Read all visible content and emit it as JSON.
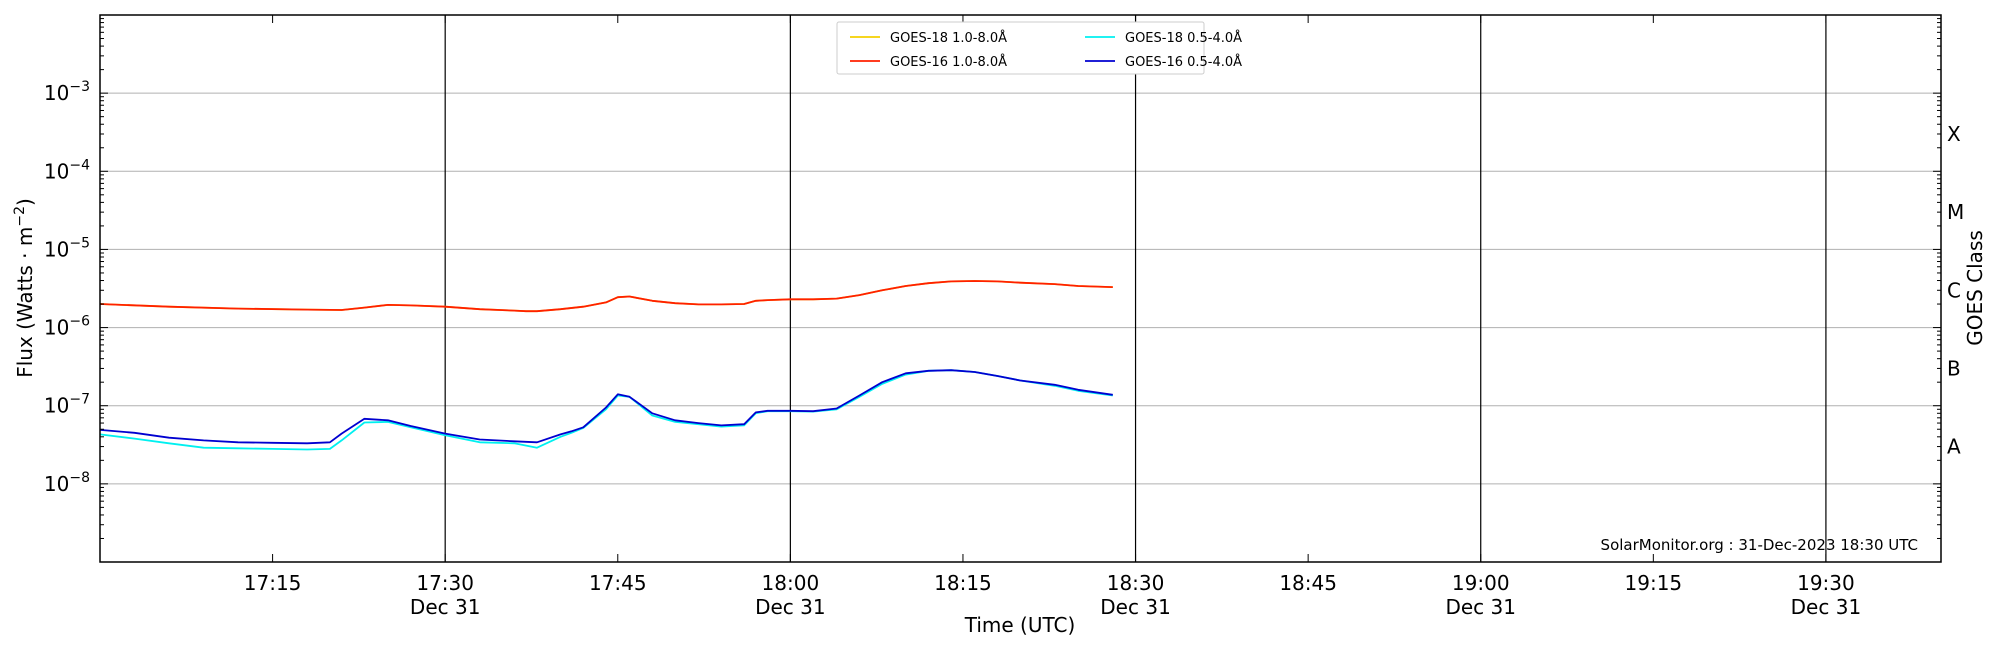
{
  "chart_data": {
    "type": "line",
    "xlabel": "Time (UTC)",
    "ylabel_main": "Flux (Watts · m",
    "ylabel_sup": "−2",
    "ylabel_tail": ")",
    "y2label": "GOES Class",
    "footer": "SolarMonitor.org : 31-Dec-2023 18:30 UTC",
    "y_scale": "log",
    "ylim": [
      1e-09,
      0.01
    ],
    "xlim": [
      17.0,
      19.6667
    ],
    "grid": "horizontal",
    "legend_position": "top-center",
    "y_ticks": [
      {
        "value": 1e-08,
        "base": "10",
        "exp": "−8"
      },
      {
        "value": 1e-07,
        "base": "10",
        "exp": "−7"
      },
      {
        "value": 1e-06,
        "base": "10",
        "exp": "−6"
      },
      {
        "value": 1e-05,
        "base": "10",
        "exp": "−5"
      },
      {
        "value": 0.0001,
        "base": "10",
        "exp": "−4"
      },
      {
        "value": 0.001,
        "base": "10",
        "exp": "−3"
      }
    ],
    "x_ticks": [
      {
        "value": 17.25,
        "label": "17:15",
        "date": ""
      },
      {
        "value": 17.5,
        "label": "17:30",
        "date": "Dec 31"
      },
      {
        "value": 17.75,
        "label": "17:45",
        "date": ""
      },
      {
        "value": 18.0,
        "label": "18:00",
        "date": "Dec 31"
      },
      {
        "value": 18.25,
        "label": "18:15",
        "date": ""
      },
      {
        "value": 18.5,
        "label": "18:30",
        "date": "Dec 31"
      },
      {
        "value": 18.75,
        "label": "18:45",
        "date": ""
      },
      {
        "value": 19.0,
        "label": "19:00",
        "date": "Dec 31"
      },
      {
        "value": 19.25,
        "label": "19:15",
        "date": ""
      },
      {
        "value": 19.5,
        "label": "19:30",
        "date": "Dec 31"
      }
    ],
    "class_labels": [
      {
        "label": "A",
        "value": 3e-08
      },
      {
        "label": "B",
        "value": 3e-07
      },
      {
        "label": "C",
        "value": 3e-06
      },
      {
        "label": "M",
        "value": 3e-05
      },
      {
        "label": "X",
        "value": 0.0003
      }
    ],
    "legend": [
      {
        "name": "GOES-18 1.0-8.0Å",
        "color": "#f5d000"
      },
      {
        "name": "GOES-18 0.5-4.0Å",
        "color": "#00f0f0"
      },
      {
        "name": "GOES-16 1.0-8.0Å",
        "color": "#ff2000"
      },
      {
        "name": "GOES-16 0.5-4.0Å",
        "color": "#0000d0"
      }
    ],
    "series": [
      {
        "name": "GOES-18 1.0-8.0Å",
        "color": "#f5d000",
        "x": [
          17.0,
          17.1,
          17.2,
          17.3,
          17.35,
          17.383,
          17.417,
          17.45,
          17.5,
          17.55,
          17.6,
          17.617,
          17.633,
          17.667,
          17.7,
          17.733,
          17.75,
          17.767,
          17.8,
          17.833,
          17.867,
          17.9,
          17.933,
          17.95,
          17.967,
          18.0,
          18.033,
          18.067,
          18.1,
          18.133,
          18.167,
          18.2,
          18.233,
          18.267,
          18.3,
          18.333,
          18.383,
          18.417,
          18.467
        ],
        "y": [
          2e-06,
          1.85e-06,
          1.75e-06,
          1.7e-06,
          1.68e-06,
          1.8e-06,
          1.95e-06,
          1.92e-06,
          1.85e-06,
          1.72e-06,
          1.65e-06,
          1.62e-06,
          1.62e-06,
          1.72e-06,
          1.85e-06,
          2.1e-06,
          2.45e-06,
          2.5e-06,
          2.2e-06,
          2.05e-06,
          1.98e-06,
          1.98e-06,
          2e-06,
          2.2e-06,
          2.25e-06,
          2.3e-06,
          2.3e-06,
          2.35e-06,
          2.6e-06,
          3e-06,
          3.4e-06,
          3.7e-06,
          3.9e-06,
          3.95e-06,
          3.9e-06,
          3.75e-06,
          3.6e-06,
          3.4e-06,
          3.3e-06
        ]
      },
      {
        "name": "GOES-16 1.0-8.0Å",
        "color": "#ff2000",
        "x": [
          17.0,
          17.1,
          17.2,
          17.3,
          17.35,
          17.383,
          17.417,
          17.45,
          17.5,
          17.55,
          17.6,
          17.617,
          17.633,
          17.667,
          17.7,
          17.733,
          17.75,
          17.767,
          17.8,
          17.833,
          17.867,
          17.9,
          17.933,
          17.95,
          17.967,
          18.0,
          18.033,
          18.067,
          18.1,
          18.133,
          18.167,
          18.2,
          18.233,
          18.267,
          18.3,
          18.333,
          18.383,
          18.417,
          18.467
        ],
        "y": [
          2e-06,
          1.85e-06,
          1.75e-06,
          1.7e-06,
          1.68e-06,
          1.8e-06,
          1.95e-06,
          1.92e-06,
          1.85e-06,
          1.72e-06,
          1.65e-06,
          1.62e-06,
          1.62e-06,
          1.72e-06,
          1.85e-06,
          2.1e-06,
          2.45e-06,
          2.5e-06,
          2.2e-06,
          2.05e-06,
          1.98e-06,
          1.98e-06,
          2e-06,
          2.2e-06,
          2.25e-06,
          2.3e-06,
          2.3e-06,
          2.35e-06,
          2.6e-06,
          3e-06,
          3.4e-06,
          3.7e-06,
          3.9e-06,
          3.95e-06,
          3.9e-06,
          3.75e-06,
          3.6e-06,
          3.4e-06,
          3.3e-06
        ]
      },
      {
        "name": "GOES-18 0.5-4.0Å",
        "color": "#00f0f0",
        "x": [
          17.0,
          17.05,
          17.1,
          17.15,
          17.2,
          17.25,
          17.3,
          17.333,
          17.35,
          17.383,
          17.417,
          17.45,
          17.5,
          17.55,
          17.6,
          17.633,
          17.667,
          17.683,
          17.7,
          17.733,
          17.75,
          17.767,
          17.8,
          17.833,
          17.867,
          17.9,
          17.933,
          17.95,
          17.967,
          18.0,
          18.033,
          18.067,
          18.1,
          18.133,
          18.167,
          18.2,
          18.233,
          18.267,
          18.3,
          18.333,
          18.383,
          18.417,
          18.467
        ],
        "y": [
          4.3e-08,
          3.8e-08,
          3.3e-08,
          2.9e-08,
          2.85e-08,
          2.8e-08,
          2.75e-08,
          2.8e-08,
          3.6e-08,
          6.1e-08,
          6.2e-08,
          5.3e-08,
          4.2e-08,
          3.4e-08,
          3.3e-08,
          2.9e-08,
          4e-08,
          4.5e-08,
          5.2e-08,
          9e-08,
          1.35e-07,
          1.3e-07,
          7.5e-08,
          6.2e-08,
          5.8e-08,
          5.4e-08,
          5.6e-08,
          8e-08,
          8.5e-08,
          8.5e-08,
          8.4e-08,
          9e-08,
          1.3e-07,
          1.9e-07,
          2.5e-07,
          2.8e-07,
          2.85e-07,
          2.7e-07,
          2.4e-07,
          2.1e-07,
          1.8e-07,
          1.55e-07,
          1.35e-07
        ]
      },
      {
        "name": "GOES-16 0.5-4.0Å",
        "color": "#0000d0",
        "x": [
          17.0,
          17.05,
          17.1,
          17.15,
          17.2,
          17.25,
          17.3,
          17.333,
          17.35,
          17.383,
          17.417,
          17.45,
          17.5,
          17.55,
          17.6,
          17.633,
          17.667,
          17.683,
          17.7,
          17.733,
          17.75,
          17.767,
          17.8,
          17.833,
          17.867,
          17.9,
          17.933,
          17.95,
          17.967,
          18.0,
          18.033,
          18.067,
          18.1,
          18.133,
          18.167,
          18.2,
          18.233,
          18.267,
          18.3,
          18.333,
          18.383,
          18.417,
          18.467
        ],
        "y": [
          4.9e-08,
          4.5e-08,
          3.9e-08,
          3.6e-08,
          3.4e-08,
          3.35e-08,
          3.3e-08,
          3.4e-08,
          4.4e-08,
          6.8e-08,
          6.5e-08,
          5.5e-08,
          4.4e-08,
          3.7e-08,
          3.5e-08,
          3.4e-08,
          4.3e-08,
          4.7e-08,
          5.3e-08,
          9.5e-08,
          1.4e-07,
          1.3e-07,
          8e-08,
          6.5e-08,
          6e-08,
          5.6e-08,
          5.8e-08,
          8.2e-08,
          8.6e-08,
          8.6e-08,
          8.5e-08,
          9.2e-08,
          1.35e-07,
          2e-07,
          2.6e-07,
          2.8e-07,
          2.85e-07,
          2.7e-07,
          2.4e-07,
          2.1e-07,
          1.85e-07,
          1.6e-07,
          1.38e-07
        ]
      }
    ]
  }
}
